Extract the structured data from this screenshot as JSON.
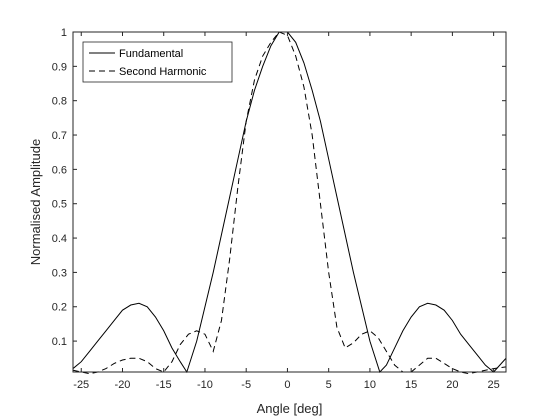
{
  "chart_data": {
    "type": "line",
    "title": "",
    "xlabel": "Angle [deg]",
    "ylabel": "Normalised Amplitude",
    "xlim": [
      -26,
      26.5
    ],
    "ylim": [
      0.01,
      1
    ],
    "xticks": [
      -25,
      -20,
      -15,
      -10,
      -5,
      0,
      5,
      10,
      15,
      20,
      25
    ],
    "yticks": [
      0.1,
      0.2,
      0.3,
      0.4,
      0.5,
      0.6,
      0.7,
      0.8,
      0.9,
      1
    ],
    "grid": false,
    "legend_position": "top-left",
    "series": [
      {
        "name": "Fundamental",
        "style": "solid",
        "color": "#000000",
        "x": [
          -26,
          -25,
          -24,
          -23,
          -22,
          -21,
          -20,
          -19,
          -18,
          -17,
          -16,
          -15,
          -14,
          -13,
          -12.2,
          -11,
          -10,
          -9,
          -8,
          -7,
          -6,
          -5,
          -4,
          -3,
          -2,
          -1,
          0,
          1,
          2,
          3,
          4,
          5,
          6,
          7,
          8,
          9,
          10,
          11.2,
          12,
          13,
          14,
          15,
          16,
          17,
          18,
          19,
          20,
          21,
          22,
          23,
          24,
          25,
          26.5
        ],
        "y": [
          0.02,
          0.04,
          0.07,
          0.1,
          0.13,
          0.16,
          0.19,
          0.205,
          0.21,
          0.2,
          0.17,
          0.13,
          0.08,
          0.04,
          0.01,
          0.1,
          0.2,
          0.3,
          0.41,
          0.52,
          0.63,
          0.74,
          0.83,
          0.9,
          0.96,
          1.0,
          1.0,
          0.97,
          0.91,
          0.83,
          0.74,
          0.63,
          0.52,
          0.41,
          0.3,
          0.2,
          0.1,
          0.01,
          0.03,
          0.08,
          0.13,
          0.17,
          0.2,
          0.21,
          0.205,
          0.19,
          0.16,
          0.12,
          0.09,
          0.06,
          0.03,
          0.01,
          0.05
        ]
      },
      {
        "name": "Second Harmonic",
        "style": "dashed",
        "color": "#000000",
        "x": [
          -26,
          -25,
          -24,
          -23,
          -22,
          -21,
          -20,
          -19,
          -18,
          -17,
          -16,
          -15,
          -14,
          -13,
          -12,
          -11,
          -10,
          -9,
          -8,
          -7,
          -6,
          -5,
          -4,
          -3,
          -2,
          -1,
          0,
          1,
          2,
          3,
          4,
          5,
          6,
          7,
          8,
          9,
          10,
          11,
          12,
          13,
          14,
          15,
          16,
          17,
          18,
          19,
          20,
          21,
          22,
          23,
          24,
          25,
          26.5
        ],
        "y": [
          0.015,
          0.01,
          0.005,
          0.01,
          0.02,
          0.035,
          0.045,
          0.05,
          0.05,
          0.04,
          0.02,
          0.01,
          0.04,
          0.09,
          0.12,
          0.13,
          0.12,
          0.07,
          0.16,
          0.34,
          0.55,
          0.74,
          0.86,
          0.93,
          0.97,
          1.0,
          0.99,
          0.93,
          0.84,
          0.7,
          0.5,
          0.3,
          0.14,
          0.08,
          0.095,
          0.12,
          0.13,
          0.11,
          0.07,
          0.03,
          0.01,
          0.01,
          0.03,
          0.05,
          0.05,
          0.035,
          0.02,
          0.01,
          0.005,
          0.01,
          0.015,
          0.02,
          0.025
        ]
      }
    ]
  }
}
